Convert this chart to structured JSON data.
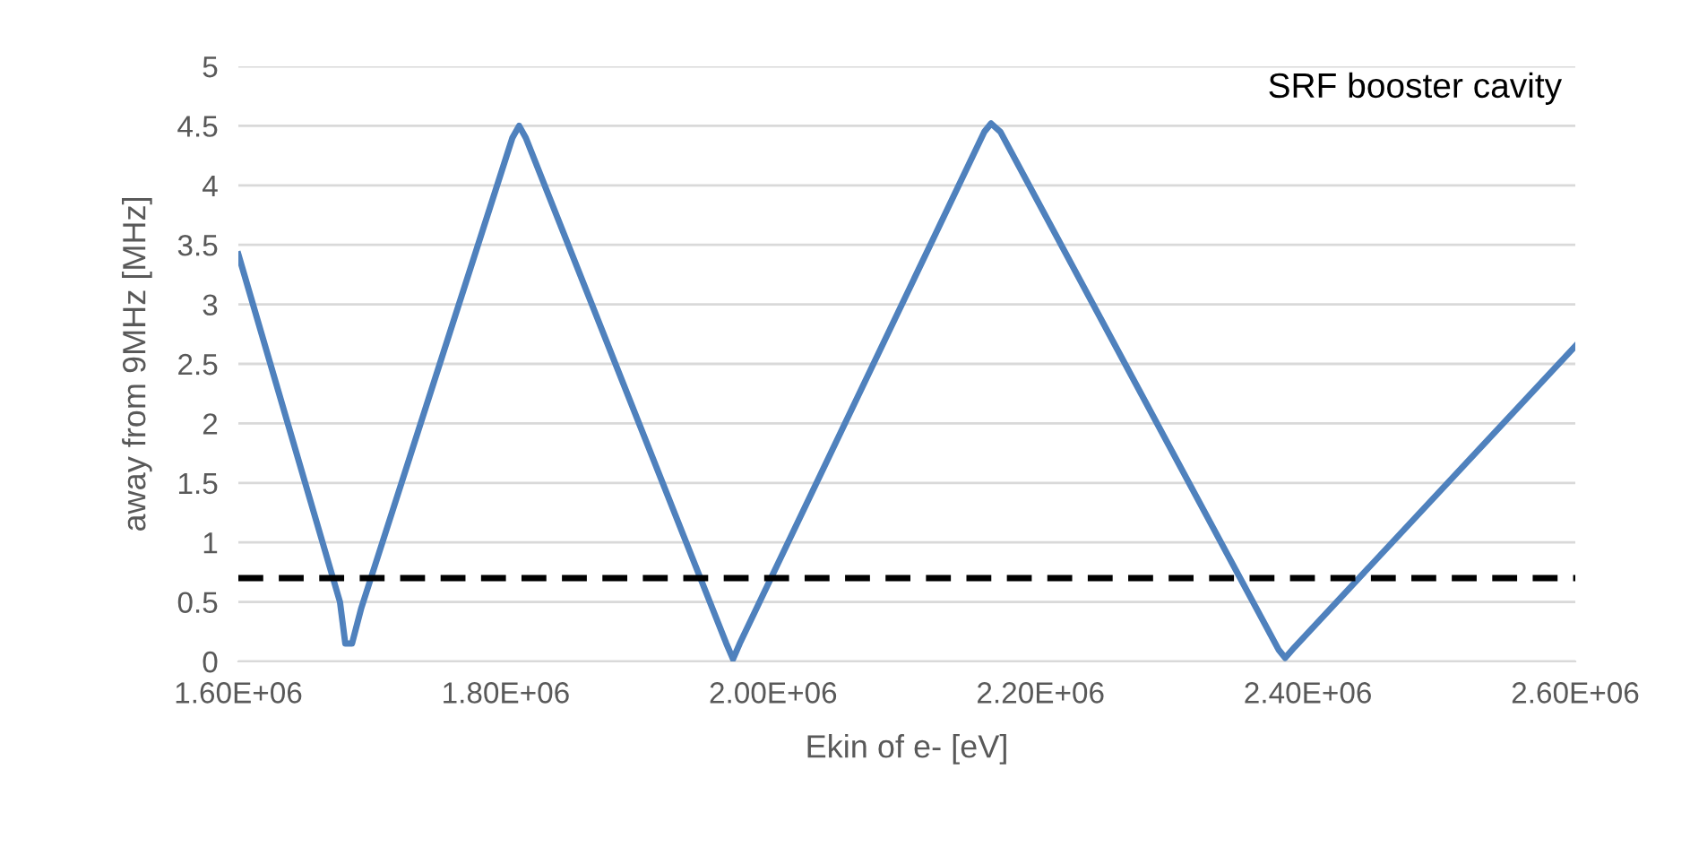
{
  "chart_data": {
    "type": "line",
    "xlabel": "Ekin of e- [eV]",
    "ylabel": "away from 9MHz [MHz]",
    "annotations": [
      "SRF booster cavity"
    ],
    "series": [
      {
        "color": "#4f81bd",
        "x": [
          1600000,
          1676000,
          1680000,
          1685000,
          1692000,
          1805000,
          1810000,
          1815000,
          1965000,
          1970000,
          1975000,
          2158000,
          2163000,
          2170000,
          2378000,
          2383000,
          2390000,
          2600000
        ],
        "values": [
          3.42,
          0.5,
          0.15,
          0.15,
          0.45,
          4.4,
          4.5,
          4.4,
          0.15,
          0.02,
          0.15,
          4.45,
          4.52,
          4.45,
          0.1,
          0.03,
          0.12,
          2.65
        ]
      }
    ],
    "ref_lines": [
      {
        "axis": "y",
        "value": 0.7,
        "color": "#000000",
        "line_style": "dashed"
      }
    ],
    "xlim": [
      1600000,
      2600000
    ],
    "xticks": [
      {
        "value": 1600000,
        "label": "1.60E+06"
      },
      {
        "value": 1800000,
        "label": "1.80E+06"
      },
      {
        "value": 2000000,
        "label": "2.00E+06"
      },
      {
        "value": 2200000,
        "label": "2.20E+06"
      },
      {
        "value": 2400000,
        "label": "2.40E+06"
      },
      {
        "value": 2600000,
        "label": "2.60E+06"
      }
    ],
    "ylim": [
      0,
      5
    ],
    "yticks": [
      0,
      0.5,
      1,
      1.5,
      2,
      2.5,
      3,
      3.5,
      4,
      4.5,
      5
    ],
    "grid": "y",
    "legend": false
  }
}
